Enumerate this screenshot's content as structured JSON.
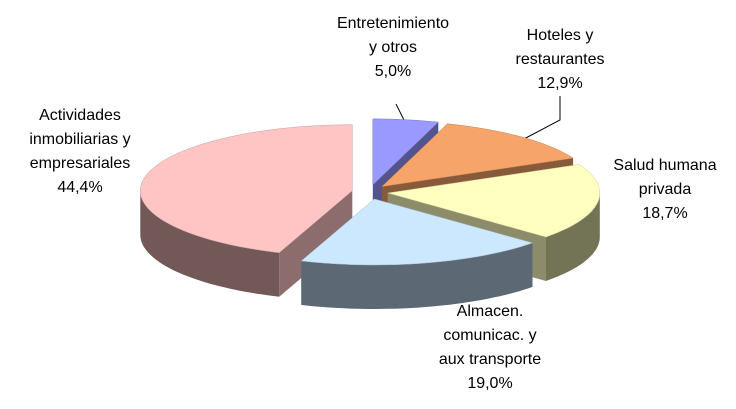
{
  "chart_data": {
    "type": "pie",
    "categories": [
      "Entretenimiento\ny otros",
      "Hoteles y\nrestaurantes",
      "Salud humana\nprivada",
      "Almacen.\ncomunicac. y\naux transporte",
      "Actividades\ninmobiliarias y\nempresariales"
    ],
    "values": [
      5.0,
      12.9,
      18.7,
      19.0,
      44.4
    ],
    "value_labels": [
      "5,0%",
      "12,9%",
      "18,7%",
      "19,0%",
      "44,4%"
    ],
    "colors": [
      "#9999ff",
      "#f6a46a",
      "#ffffc0",
      "#cce8ff",
      "#ffc4c4"
    ]
  }
}
